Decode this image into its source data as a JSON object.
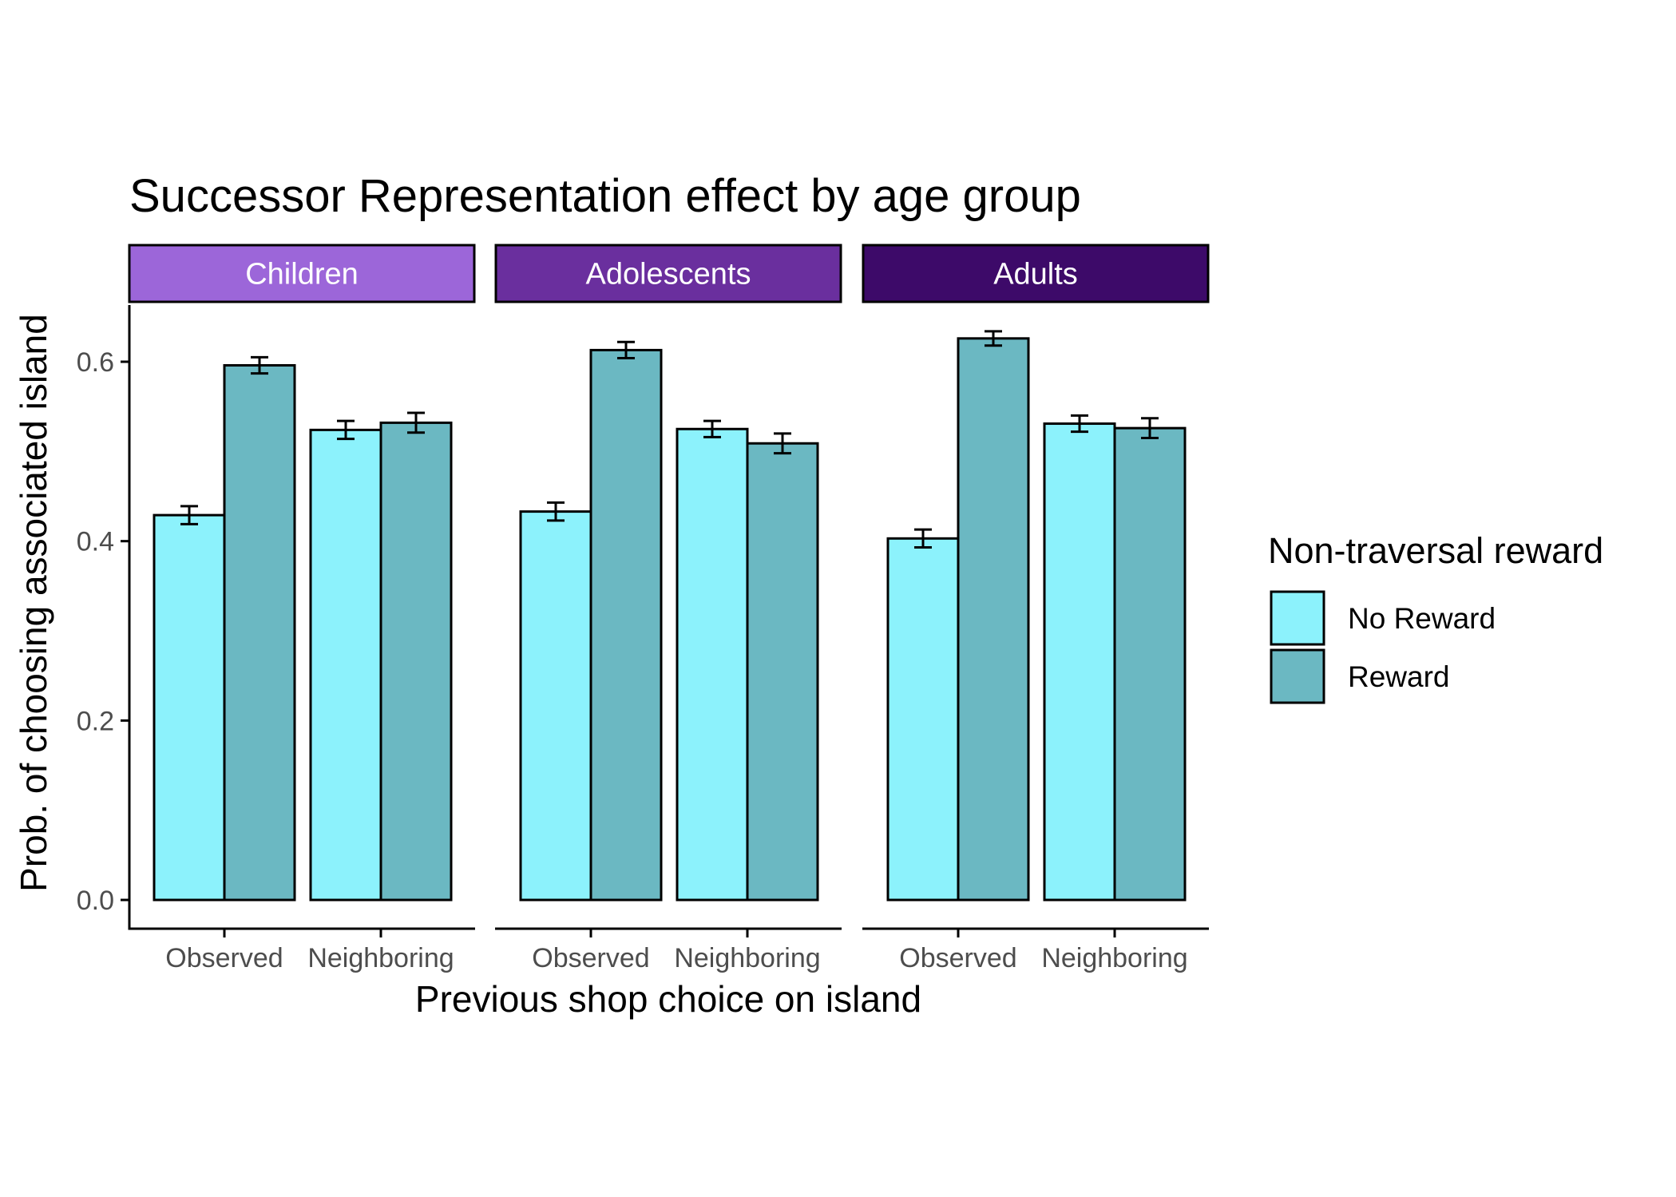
{
  "chart_data": {
    "type": "bar",
    "title": "Successor Representation effect by age group",
    "xlabel": "Previous shop choice on island",
    "ylabel": "Prob. of choosing associated island",
    "ylim": [
      0,
      0.665
    ],
    "yticks": [
      "0.0",
      "0.2",
      "0.4",
      "0.6"
    ],
    "categories": [
      "Observed",
      "Neighboring"
    ],
    "facets": [
      {
        "label": "Children",
        "color": "#9c66d9",
        "series": [
          {
            "name": "No Reward",
            "values": [
              0.429,
              0.524
            ],
            "errors": [
              0.01,
              0.01
            ]
          },
          {
            "name": "Reward",
            "values": [
              0.596,
              0.532
            ],
            "errors": [
              0.009,
              0.011
            ]
          }
        ]
      },
      {
        "label": "Adolescents",
        "color": "#6a2f9e",
        "series": [
          {
            "name": "No Reward",
            "values": [
              0.433,
              0.525
            ],
            "errors": [
              0.01,
              0.009
            ]
          },
          {
            "name": "Reward",
            "values": [
              0.613,
              0.509
            ],
            "errors": [
              0.009,
              0.011
            ]
          }
        ]
      },
      {
        "label": "Adults",
        "color": "#3d0a69",
        "series": [
          {
            "name": "No Reward",
            "values": [
              0.403,
              0.531
            ],
            "errors": [
              0.01,
              0.009
            ]
          },
          {
            "name": "Reward",
            "values": [
              0.626,
              0.526
            ],
            "errors": [
              0.008,
              0.011
            ]
          }
        ]
      }
    ],
    "legend": {
      "title": "Non-traversal reward",
      "placement": "right",
      "entries": [
        {
          "name": "No Reward",
          "color": "#8cf2fc"
        },
        {
          "name": "Reward",
          "color": "#6bb8c2"
        }
      ]
    },
    "grid": false
  }
}
